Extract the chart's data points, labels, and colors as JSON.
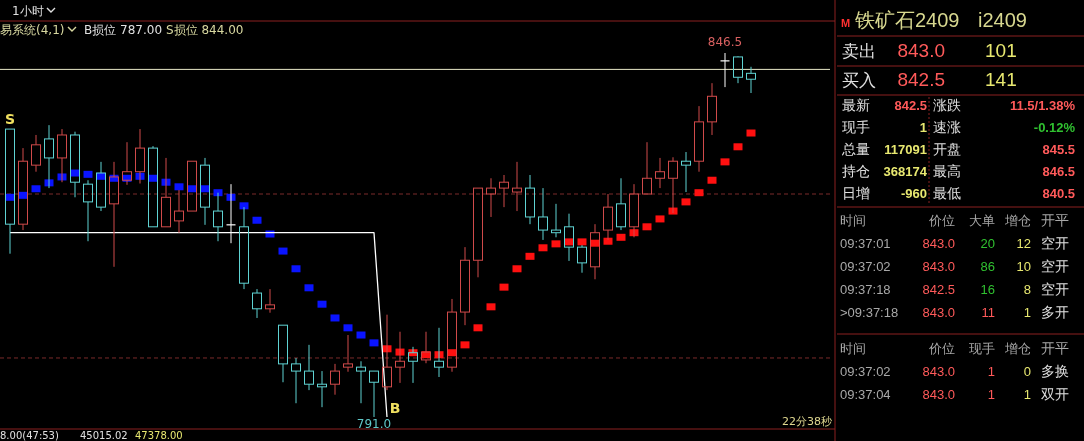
{
  "chart_data": [
    {
      "type": "candlestick",
      "categories": [
        null,
        null,
        null,
        null,
        null,
        null,
        null,
        null,
        null,
        null,
        null,
        null,
        null,
        null,
        null,
        null,
        null,
        null,
        null,
        null,
        null,
        null,
        null,
        null,
        null,
        null,
        null,
        null,
        null,
        null,
        null,
        null,
        null,
        null,
        null,
        null,
        null,
        null,
        null,
        null,
        null,
        null,
        null,
        null,
        null,
        null,
        null,
        null,
        null,
        null,
        null,
        null,
        null,
        null,
        null,
        null,
        null,
        null
      ],
      "ohlc": [
        [
          834.9,
          834.9,
          815.9,
          820.4
        ],
        [
          820.4,
          832.0,
          819.5,
          830.0
        ],
        [
          829.4,
          834.0,
          828.4,
          832.5
        ],
        [
          833.4,
          835.5,
          825.9,
          830.5
        ],
        [
          830.5,
          834.9,
          826.8,
          834.0
        ],
        [
          834.0,
          834.5,
          824.5,
          826.8
        ],
        [
          826.5,
          827.1,
          817.8,
          823.8
        ],
        [
          828.2,
          829.9,
          822.4,
          823.0
        ],
        [
          823.5,
          829.9,
          813.9,
          827.6
        ],
        [
          827.1,
          832.9,
          826.4,
          828.4
        ],
        [
          828.4,
          834.9,
          826.6,
          832.0
        ],
        [
          832.0,
          832.3,
          820.0,
          820.0
        ],
        [
          820.0,
          830.5,
          820.0,
          824.5
        ],
        [
          820.9,
          825.6,
          819.1,
          822.4
        ],
        [
          822.4,
          830.0,
          822.4,
          830.0
        ],
        [
          829.4,
          830.5,
          820.3,
          823.0
        ],
        [
          822.4,
          825.2,
          817.8,
          820.0
        ],
        [
          820.3,
          826.5,
          817.5,
          820.3
        ],
        [
          820.0,
          823.0,
          810.5,
          811.4
        ],
        [
          809.9,
          810.5,
          806.1,
          807.5
        ],
        [
          807.5,
          810.5,
          806.9,
          808.1
        ],
        [
          805.0,
          805.0,
          796.3,
          799.1
        ],
        [
          799.1,
          800.0,
          793.1,
          798.0
        ],
        [
          798.0,
          802.0,
          795.1,
          796.0
        ],
        [
          796.0,
          798.0,
          792.5,
          795.6
        ],
        [
          796.0,
          799.1,
          794.4,
          798.0
        ],
        [
          798.6,
          803.5,
          797.9,
          799.1
        ],
        [
          798.6,
          799.5,
          793.1,
          798.0
        ],
        [
          798.0,
          798.0,
          791.0,
          796.3
        ],
        [
          795.6,
          806.6,
          795.1,
          798.6
        ],
        [
          798.6,
          804.0,
          796.2,
          799.5
        ],
        [
          800.8,
          801.7,
          796.2,
          799.5
        ],
        [
          799.7,
          804.0,
          799.2,
          800.9
        ],
        [
          799.5,
          804.6,
          797.1,
          798.6
        ],
        [
          798.6,
          809.0,
          797.9,
          807.0
        ],
        [
          807.0,
          816.9,
          805.0,
          814.9
        ],
        [
          814.9,
          825.9,
          812.3,
          825.9
        ],
        [
          825.0,
          827.4,
          821.5,
          825.9
        ],
        [
          825.9,
          827.9,
          823.0,
          826.8
        ],
        [
          825.3,
          829.9,
          822.4,
          825.9
        ],
        [
          825.9,
          827.9,
          820.4,
          821.5
        ],
        [
          821.5,
          825.9,
          818.0,
          819.5
        ],
        [
          819.5,
          823.5,
          818.4,
          819.1
        ],
        [
          820.0,
          822.0,
          814.8,
          816.9
        ],
        [
          816.9,
          817.2,
          813.0,
          814.5
        ],
        [
          813.9,
          820.4,
          812.0,
          819.1
        ],
        [
          819.5,
          825.0,
          818.0,
          823.0
        ],
        [
          823.5,
          827.4,
          819.5,
          820.0
        ],
        [
          820.0,
          826.5,
          818.4,
          825.0
        ],
        [
          825.0,
          832.9,
          825.0,
          827.4
        ],
        [
          827.4,
          830.5,
          825.9,
          828.4
        ],
        [
          827.4,
          830.6,
          822.1,
          830.0
        ],
        [
          830.0,
          831.4,
          825.3,
          829.4
        ],
        [
          830.0,
          838.4,
          828.4,
          836.0
        ],
        [
          836.0,
          841.9,
          834.0,
          839.9
        ],
        [
          845.3,
          846.5,
          841.3,
          845.3
        ],
        [
          845.9,
          846.0,
          841.9,
          842.8
        ],
        [
          843.4,
          844.4,
          840.4,
          842.5
        ]
      ],
      "colors": [
        "#5fd3d3",
        "#d04a4a",
        "#d04a4a",
        "#5fd3d3",
        "#d04a4a",
        "#5fd3d3",
        "#5fd3d3",
        "#5fd3d3",
        "#d04a4a",
        "#d04a4a",
        "#d04a4a",
        "#5fd3d3",
        "#d04a4a",
        "#d04a4a",
        "#d04a4a",
        "#5fd3d3",
        "#5fd3d3",
        "#ffffff",
        "#5fd3d3",
        "#5fd3d3",
        "#d04a4a",
        "#5fd3d3",
        "#5fd3d3",
        "#5fd3d3",
        "#5fd3d3",
        "#d04a4a",
        "#d04a4a",
        "#5fd3d3",
        "#5fd3d3",
        "#d04a4a",
        "#d04a4a",
        "#5fd3d3",
        "#d04a4a",
        "#5fd3d3",
        "#d04a4a",
        "#d04a4a",
        "#d04a4a",
        "#d04a4a",
        "#d04a4a",
        "#d04a4a",
        "#5fd3d3",
        "#5fd3d3",
        "#5fd3d3",
        "#5fd3d3",
        "#5fd3d3",
        "#d04a4a",
        "#d04a4a",
        "#5fd3d3",
        "#d04a4a",
        "#d04a4a",
        "#d04a4a",
        "#d04a4a",
        "#5fd3d3",
        "#d04a4a",
        "#d04a4a",
        "#ffffff",
        "#5fd3d3",
        "#5fd3d3"
      ],
      "series": [
        {
          "type": "scatter",
          "color": "#0a14ff",
          "marker": "square",
          "values": [
            824.5,
            824.8,
            825.8,
            826.7,
            827.6,
            828.2,
            828.0,
            827.7,
            827.4,
            827.4,
            827.7,
            827.4,
            826.8,
            826.1,
            825.8,
            825.8,
            825.2,
            824.5,
            823.2,
            821.0,
            818.9,
            816.3,
            813.6,
            810.7,
            808.2,
            806.1,
            804.6,
            803.5,
            802.3,
            null,
            null,
            null,
            null,
            null,
            null,
            null,
            null,
            null,
            null,
            null,
            null,
            null,
            null,
            null,
            null,
            null,
            null,
            null,
            null,
            null,
            null,
            null,
            null,
            null,
            null,
            null,
            null,
            null
          ]
        },
        {
          "type": "scatter",
          "color": "#ff1010",
          "marker": "square",
          "values": [
            null,
            null,
            null,
            null,
            null,
            null,
            null,
            null,
            null,
            null,
            null,
            null,
            null,
            null,
            null,
            null,
            null,
            null,
            null,
            null,
            null,
            null,
            null,
            null,
            null,
            null,
            null,
            null,
            null,
            801.4,
            800.9,
            800.8,
            800.5,
            800.5,
            800.8,
            802.0,
            804.6,
            807.8,
            810.8,
            813.6,
            815.5,
            816.8,
            817.4,
            817.7,
            817.7,
            817.5,
            817.8,
            818.4,
            819.1,
            820.0,
            821.2,
            822.4,
            823.8,
            825.2,
            827.1,
            829.9,
            832.2,
            834.3
          ]
        },
        {
          "type": "line",
          "color": "#ffffff",
          "line_style": "solid",
          "values": [
            819.1,
            819.1,
            819.1,
            819.1,
            819.1,
            819.1,
            819.1,
            819.1,
            819.1,
            819.1,
            819.1,
            819.1,
            819.1,
            819.1,
            819.1,
            819.1,
            819.1,
            819.1,
            819.1,
            819.1,
            819.1,
            819.1,
            819.1,
            819.1,
            819.1,
            819.1,
            819.1,
            819.1,
            819.1,
            791.0,
            null,
            null,
            null,
            null,
            null,
            null,
            null,
            null,
            null,
            null,
            null,
            null,
            null,
            null,
            null,
            null,
            null,
            null,
            null,
            null,
            null,
            null,
            null,
            null,
            null,
            null,
            null,
            null
          ]
        }
      ],
      "ref_lines": [
        {
          "axis": "y",
          "value": 844,
          "color": "#e8e8c8",
          "line_style": "solid"
        },
        {
          "axis": "y",
          "value": 825,
          "color": "#7a2a2a",
          "line_style": "dashed"
        },
        {
          "axis": "y",
          "value": 800,
          "color": "#7a2a2a",
          "line_style": "dashed"
        }
      ],
      "annotations": [
        "1小时",
        "易系统(4,1)",
        "B损位 787.00",
        "S损位 844.00",
        "S",
        "B",
        {
          "text": "846.5",
          "y": 846.5
        },
        {
          "text": "791.0",
          "y": 791.0
        },
        "8.00(47:53)",
        "45015.02",
        "47378.00",
        "22分38秒"
      ]
    },
    {
      "type": "other",
      "annotations": [
        "M",
        "铁矿石2409",
        "i2409",
        "卖出",
        "843.0",
        "101",
        "买入",
        "842.5",
        "141",
        "最新",
        "842.5",
        "涨跌",
        "11.5/1.38%",
        "现手",
        "1",
        "速涨",
        "-0.12%",
        "总量",
        "117091",
        "开盘",
        "845.5",
        "持仓",
        "368174",
        "最高",
        "846.5",
        "日增",
        "-960",
        "最低",
        "840.5",
        "时间",
        "价位",
        "大单",
        "增仓",
        "开平",
        "09:37:01",
        "843.0",
        "20",
        "12",
        "空开",
        "09:37:02",
        "843.0",
        "86",
        "10",
        "空开",
        "09:37:18",
        "842.5",
        "16",
        "8",
        "空开",
        ">09:37:18",
        "843.0",
        "11",
        "1",
        "多开",
        "时间",
        "价位",
        "现手",
        "增仓",
        "开平",
        "09:37:02",
        "843.0",
        "1",
        "0",
        "多换",
        "09:37:04",
        "843.0",
        "1",
        "1",
        "双开"
      ]
    }
  ]
}
